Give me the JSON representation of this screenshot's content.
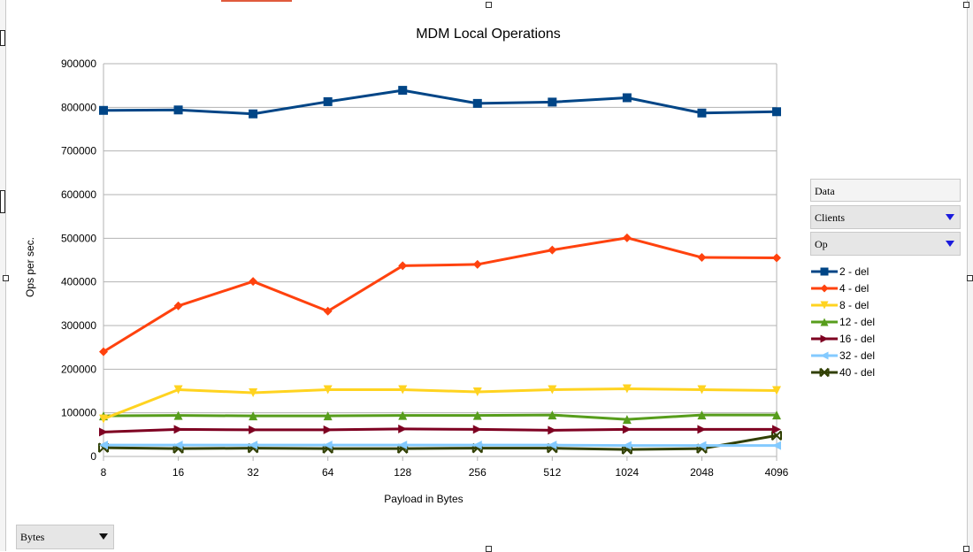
{
  "chart_data": {
    "type": "line",
    "title": "MDM Local Operations",
    "xlabel": "Payload in Bytes",
    "ylabel": "Ops per sec.",
    "categories": [
      "8",
      "16",
      "32",
      "64",
      "128",
      "256",
      "512",
      "1024",
      "2048",
      "4096"
    ],
    "ylim": [
      0,
      900000
    ],
    "yticks": [
      0,
      100000,
      200000,
      300000,
      400000,
      500000,
      600000,
      700000,
      800000,
      900000
    ],
    "grid": true,
    "legend_position": "right",
    "series": [
      {
        "name": "2 - del",
        "color": "#004586",
        "marker": "square",
        "values": [
          793000,
          794000,
          785000,
          813000,
          839000,
          809000,
          812000,
          822000,
          787000,
          790000
        ]
      },
      {
        "name": "4 - del",
        "color": "#ff420e",
        "marker": "diamond",
        "values": [
          240000,
          345000,
          401000,
          333000,
          437000,
          440000,
          473000,
          501000,
          456000,
          455000
        ]
      },
      {
        "name": "8 - del",
        "color": "#ffd320",
        "marker": "triangle-down",
        "values": [
          86000,
          153000,
          146000,
          153000,
          153000,
          148000,
          153000,
          155000,
          153000,
          151000
        ]
      },
      {
        "name": "12 - del",
        "color": "#579d1c",
        "marker": "triangle-up",
        "values": [
          93000,
          94000,
          93000,
          93000,
          94000,
          94000,
          95000,
          85000,
          95000,
          95000
        ]
      },
      {
        "name": "16 - del",
        "color": "#7e0021",
        "marker": "triangle-right",
        "values": [
          56000,
          62000,
          61000,
          61000,
          63000,
          62000,
          60000,
          62000,
          62000,
          62000
        ]
      },
      {
        "name": "32 - del",
        "color": "#83caff",
        "marker": "triangle-left",
        "values": [
          26000,
          26000,
          26000,
          26000,
          26000,
          26000,
          26000,
          25000,
          25000,
          25000
        ]
      },
      {
        "name": "40 - del",
        "color": "#314004",
        "marker": "x",
        "values": [
          20000,
          18000,
          19000,
          18000,
          18000,
          19000,
          19000,
          16000,
          18000,
          48000
        ]
      }
    ]
  },
  "pivot": {
    "data_label": "Data",
    "clients_label": "Clients",
    "op_label": "Op",
    "bytes_label": "Bytes"
  }
}
